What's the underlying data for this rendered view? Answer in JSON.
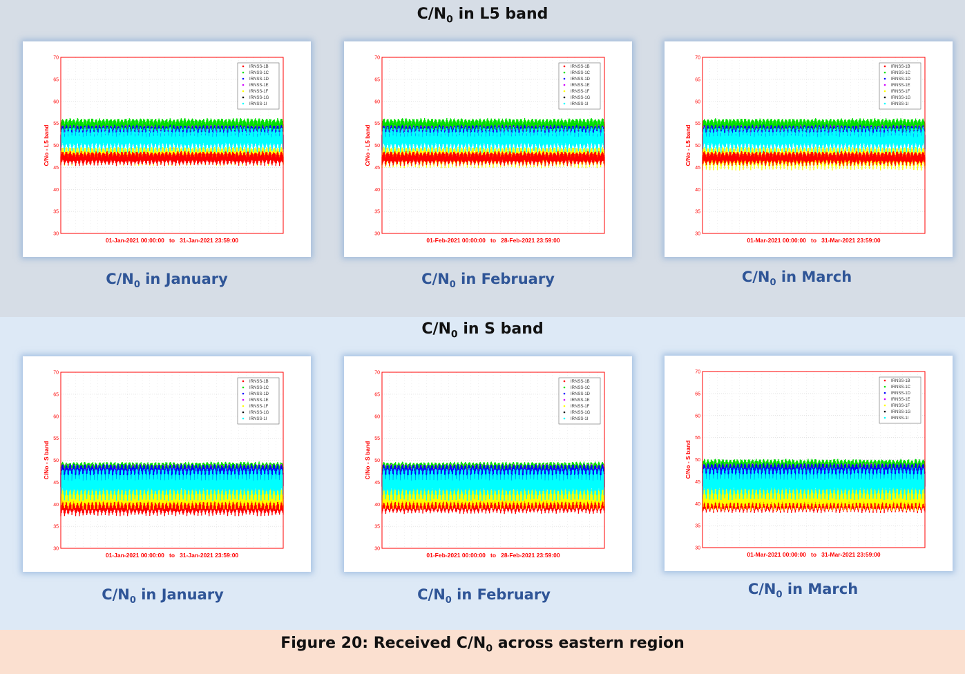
{
  "sections": [
    {
      "title_pre": "C/N",
      "title_sub": "0",
      "title_post": " in L5 band"
    },
    {
      "title_pre": "C/N",
      "title_sub": "0",
      "title_post": " in S band"
    }
  ],
  "figure_caption": {
    "pre": "Figure 20: Received C/N",
    "sub": "0",
    "post": " across eastern region"
  },
  "series_colors": {
    "IRNSS-1B": "#ff0000",
    "IRNSS-1C": "#00e000",
    "IRNSS-1D": "#0000ff",
    "IRNSS-1E": "#d000ff",
    "IRNSS-1F": "#ffff00",
    "IRNSS-1G": "#000000",
    "IRNSS-1I": "#00ffff"
  },
  "chart_data": [
    {
      "type": "scatter",
      "band": "L5",
      "caption": {
        "pre": "C/N",
        "sub": "0",
        "post": " in January"
      },
      "ylabel": "C/No - L5 band",
      "xlabel": "01-Jan-2021 00:00:00   to   31-Jan-2021 23:59:00",
      "ylim": [
        30,
        70
      ],
      "yticks": [
        30,
        35,
        40,
        45,
        50,
        55,
        60,
        65,
        70
      ],
      "grid": true,
      "legend_position": "top-right",
      "legend": [
        "IRNSS-1B",
        "IRNSS-1C",
        "IRNSS-1D",
        "IRNSS-1E",
        "IRNSS-1F",
        "IRNSS-1G",
        "IRNSS-1I"
      ],
      "series": [
        {
          "name": "IRNSS-1F",
          "min": 45.5,
          "max": 49.5
        },
        {
          "name": "IRNSS-1B",
          "min": 45.5,
          "max": 48.5
        },
        {
          "name": "IRNSS-1C",
          "min": 53,
          "max": 56
        },
        {
          "name": "IRNSS-1E",
          "min": 49,
          "max": 54.5
        },
        {
          "name": "IRNSS-1D",
          "min": 49,
          "max": 54.5
        },
        {
          "name": "IRNSS-1I",
          "min": 48.5,
          "max": 54
        }
      ]
    },
    {
      "type": "scatter",
      "band": "L5",
      "caption": {
        "pre": "C/N",
        "sub": "0",
        "post": " in February"
      },
      "ylabel": "C/No - L5 band",
      "xlabel": "01-Feb-2021 00:00:00   to   28-Feb-2021 23:59:00",
      "ylim": [
        30,
        70
      ],
      "yticks": [
        30,
        35,
        40,
        45,
        50,
        55,
        60,
        65,
        70
      ],
      "grid": true,
      "legend_position": "top-right",
      "legend": [
        "IRNSS-1B",
        "IRNSS-1C",
        "IRNSS-1D",
        "IRNSS-1E",
        "IRNSS-1F",
        "IRNSS-1G",
        "IRNSS-1I"
      ],
      "series": [
        {
          "name": "IRNSS-1F",
          "min": 45,
          "max": 49.5
        },
        {
          "name": "IRNSS-1B",
          "min": 45.5,
          "max": 48.5
        },
        {
          "name": "IRNSS-1C",
          "min": 53,
          "max": 56
        },
        {
          "name": "IRNSS-1E",
          "min": 49,
          "max": 54.5
        },
        {
          "name": "IRNSS-1D",
          "min": 49,
          "max": 54.5
        },
        {
          "name": "IRNSS-1I",
          "min": 48.5,
          "max": 54
        }
      ]
    },
    {
      "type": "scatter",
      "band": "L5",
      "caption": {
        "pre": "C/N",
        "sub": "0",
        "post": " in March"
      },
      "ylabel": "C/No - L5 band",
      "xlabel": "01-Mar-2021 00:00:00   to   31-Mar-2021 23:59:00",
      "ylim": [
        30,
        70
      ],
      "yticks": [
        30,
        35,
        40,
        45,
        50,
        55,
        60,
        65,
        70
      ],
      "grid": true,
      "legend_position": "top-right",
      "legend": [
        "IRNSS-1B",
        "IRNSS-1C",
        "IRNSS-1D",
        "IRNSS-1E",
        "IRNSS-1F",
        "IRNSS-1G",
        "IRNSS-1I"
      ],
      "series": [
        {
          "name": "IRNSS-1F",
          "min": 44.5,
          "max": 49.5
        },
        {
          "name": "IRNSS-1B",
          "min": 45.5,
          "max": 48.5
        },
        {
          "name": "IRNSS-1C",
          "min": 53,
          "max": 56
        },
        {
          "name": "IRNSS-1E",
          "min": 49,
          "max": 54.5
        },
        {
          "name": "IRNSS-1D",
          "min": 49,
          "max": 54.5
        },
        {
          "name": "IRNSS-1I",
          "min": 48.5,
          "max": 54
        }
      ]
    },
    {
      "type": "scatter",
      "band": "S",
      "caption": {
        "pre": "C/N",
        "sub": "0",
        "post": " in January"
      },
      "ylabel": "C/No - S band",
      "xlabel": "01-Jan-2021 00:00:00   to   31-Jan-2021 23:59:00",
      "ylim": [
        30,
        70
      ],
      "yticks": [
        30,
        35,
        40,
        45,
        50,
        55,
        60,
        65,
        70
      ],
      "grid": true,
      "legend_position": "top-right",
      "legend": [
        "IRNSS-1B",
        "IRNSS-1C",
        "IRNSS-1D",
        "IRNSS-1E",
        "IRNSS-1F",
        "IRNSS-1G",
        "IRNSS-1I"
      ],
      "series": [
        {
          "name": "IRNSS-1B",
          "min": 37.5,
          "max": 41
        },
        {
          "name": "IRNSS-1F",
          "min": 39,
          "max": 43.5
        },
        {
          "name": "IRNSS-1C",
          "min": 47,
          "max": 49.5
        },
        {
          "name": "IRNSS-1E",
          "min": 44,
          "max": 49
        },
        {
          "name": "IRNSS-1D",
          "min": 44,
          "max": 49
        },
        {
          "name": "IRNSS-1I",
          "min": 41,
          "max": 48
        }
      ]
    },
    {
      "type": "scatter",
      "band": "S",
      "caption": {
        "pre": "C/N",
        "sub": "0",
        "post": " in February"
      },
      "ylabel": "C/No - S band",
      "xlabel": "01-Feb-2021 00:00:00   to   28-Feb-2021 23:59:00",
      "ylim": [
        30,
        70
      ],
      "yticks": [
        30,
        35,
        40,
        45,
        50,
        55,
        60,
        65,
        70
      ],
      "grid": true,
      "legend_position": "top-right",
      "legend": [
        "IRNSS-1B",
        "IRNSS-1C",
        "IRNSS-1D",
        "IRNSS-1E",
        "IRNSS-1F",
        "IRNSS-1G",
        "IRNSS-1I"
      ],
      "series": [
        {
          "name": "IRNSS-1B",
          "min": 38,
          "max": 41
        },
        {
          "name": "IRNSS-1F",
          "min": 39,
          "max": 43.5
        },
        {
          "name": "IRNSS-1C",
          "min": 47,
          "max": 49.5
        },
        {
          "name": "IRNSS-1E",
          "min": 44,
          "max": 49
        },
        {
          "name": "IRNSS-1D",
          "min": 44,
          "max": 49
        },
        {
          "name": "IRNSS-1I",
          "min": 41,
          "max": 48
        }
      ]
    },
    {
      "type": "scatter",
      "band": "S",
      "caption": {
        "pre": "C/N",
        "sub": "0",
        "post": " in March"
      },
      "ylabel": "C/No - S band",
      "xlabel": "01-Mar-2021 00:00:00   to   31-Mar-2021 23:59:00",
      "ylim": [
        30,
        70
      ],
      "yticks": [
        30,
        35,
        40,
        45,
        50,
        55,
        60,
        65,
        70
      ],
      "grid": true,
      "legend_position": "top-right",
      "legend": [
        "IRNSS-1B",
        "IRNSS-1C",
        "IRNSS-1D",
        "IRNSS-1E",
        "IRNSS-1F",
        "IRNSS-1G",
        "IRNSS-1I"
      ],
      "series": [
        {
          "name": "IRNSS-1B",
          "min": 38,
          "max": 41
        },
        {
          "name": "IRNSS-1F",
          "min": 38.5,
          "max": 43.5
        },
        {
          "name": "IRNSS-1C",
          "min": 47,
          "max": 50
        },
        {
          "name": "IRNSS-1E",
          "min": 44,
          "max": 49
        },
        {
          "name": "IRNSS-1D",
          "min": 44,
          "max": 49
        },
        {
          "name": "IRNSS-1I",
          "min": 41,
          "max": 48
        }
      ]
    }
  ]
}
